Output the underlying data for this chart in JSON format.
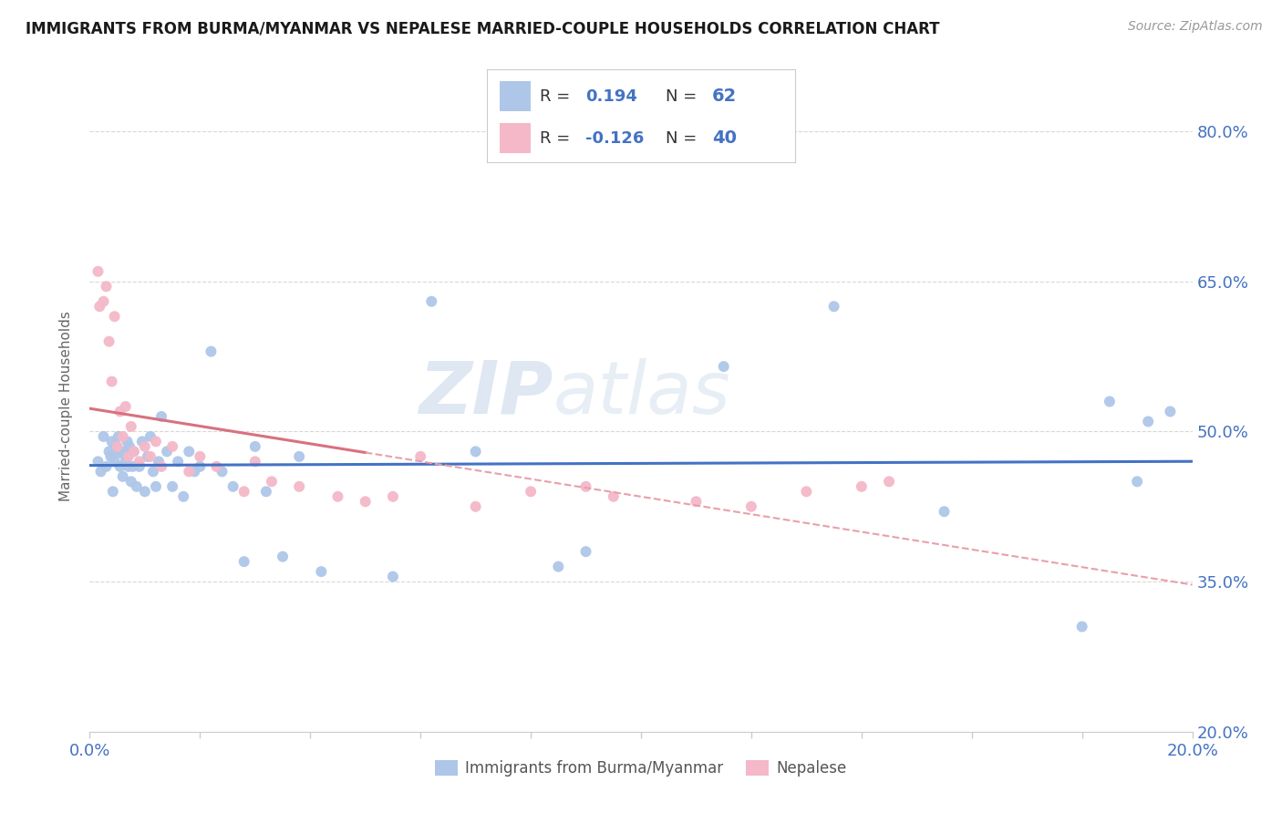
{
  "title": "IMMIGRANTS FROM BURMA/MYANMAR VS NEPALESE MARRIED-COUPLE HOUSEHOLDS CORRELATION CHART",
  "source": "Source: ZipAtlas.com",
  "ylabel_label": "Married-couple Households",
  "x_min": 0.0,
  "x_max": 20.0,
  "y_min": 20.0,
  "y_max": 85.0,
  "yticks": [
    20.0,
    35.0,
    50.0,
    65.0,
    80.0
  ],
  "ytick_labels": [
    "20.0%",
    "35.0%",
    "50.0%",
    "65.0%",
    "80.0%"
  ],
  "legend_color_blue": "#aec6e8",
  "legend_color_pink": "#f4b8c8",
  "text_color_blue": "#4472c4",
  "scatter_blue_color": "#aec6e8",
  "scatter_pink_color": "#f4b8c8",
  "trendline_blue_color": "#4472c4",
  "trendline_pink_solid_color": "#d9717f",
  "trendline_pink_dash_color": "#e8a0ab",
  "blue_R": 0.194,
  "blue_N": 62,
  "pink_R": -0.126,
  "pink_N": 40,
  "blue_scatter_x": [
    0.15,
    0.2,
    0.25,
    0.3,
    0.35,
    0.38,
    0.4,
    0.42,
    0.45,
    0.48,
    0.5,
    0.52,
    0.55,
    0.58,
    0.6,
    0.62,
    0.65,
    0.68,
    0.7,
    0.72,
    0.75,
    0.78,
    0.8,
    0.85,
    0.9,
    0.95,
    1.0,
    1.05,
    1.1,
    1.15,
    1.2,
    1.25,
    1.3,
    1.4,
    1.5,
    1.6,
    1.7,
    1.8,
    1.9,
    2.0,
    2.2,
    2.4,
    2.6,
    2.8,
    3.0,
    3.2,
    3.5,
    3.8,
    4.2,
    5.5,
    6.2,
    7.0,
    8.5,
    9.0,
    11.5,
    13.5,
    15.5,
    18.0,
    18.5,
    19.0,
    19.2,
    19.6
  ],
  "blue_scatter_y": [
    47.0,
    46.0,
    49.5,
    46.5,
    48.0,
    47.5,
    49.0,
    44.0,
    47.0,
    48.5,
    48.0,
    49.5,
    46.5,
    47.8,
    45.5,
    48.0,
    47.0,
    49.0,
    46.5,
    48.5,
    45.0,
    46.5,
    48.0,
    44.5,
    46.5,
    49.0,
    44.0,
    47.5,
    49.5,
    46.0,
    44.5,
    47.0,
    51.5,
    48.0,
    44.5,
    47.0,
    43.5,
    48.0,
    46.0,
    46.5,
    58.0,
    46.0,
    44.5,
    37.0,
    48.5,
    44.0,
    37.5,
    47.5,
    36.0,
    35.5,
    63.0,
    48.0,
    36.5,
    38.0,
    56.5,
    62.5,
    42.0,
    30.5,
    53.0,
    45.0,
    51.0,
    52.0
  ],
  "pink_scatter_x": [
    0.15,
    0.18,
    0.25,
    0.3,
    0.35,
    0.4,
    0.45,
    0.5,
    0.55,
    0.6,
    0.65,
    0.7,
    0.75,
    0.8,
    0.9,
    1.0,
    1.1,
    1.2,
    1.3,
    1.5,
    1.8,
    2.0,
    2.3,
    2.8,
    3.0,
    3.3,
    3.8,
    4.5,
    5.0,
    5.5,
    6.0,
    7.0,
    8.0,
    9.0,
    9.5,
    11.0,
    12.0,
    13.0,
    14.0,
    14.5
  ],
  "pink_scatter_y": [
    66.0,
    62.5,
    63.0,
    64.5,
    59.0,
    55.0,
    61.5,
    48.5,
    52.0,
    49.5,
    52.5,
    47.5,
    50.5,
    48.0,
    47.0,
    48.5,
    47.5,
    49.0,
    46.5,
    48.5,
    46.0,
    47.5,
    46.5,
    44.0,
    47.0,
    45.0,
    44.5,
    43.5,
    43.0,
    43.5,
    47.5,
    42.5,
    44.0,
    44.5,
    43.5,
    43.0,
    42.5,
    44.0,
    44.5,
    45.0
  ],
  "pink_solid_x_end": 5.0,
  "background_color": "#ffffff",
  "grid_color": "#d8d8d8",
  "axis_color": "#cccccc"
}
